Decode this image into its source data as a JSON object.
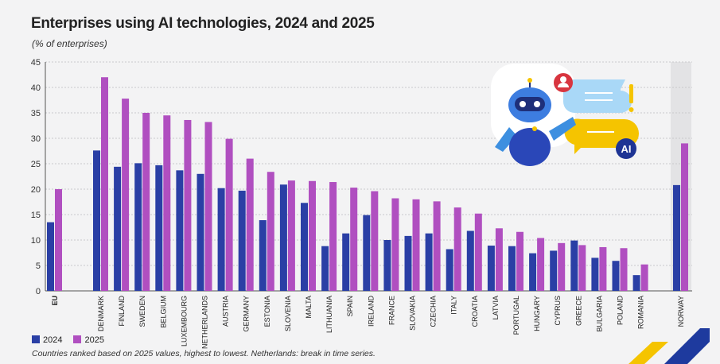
{
  "chart_data": {
    "type": "bar",
    "title": "Enterprises using AI technologies, 2024 and 2025",
    "subtitle": "(% of enterprises)",
    "ylim": [
      0,
      45
    ],
    "yticks": [
      0,
      5,
      10,
      15,
      20,
      25,
      30,
      35,
      40,
      45
    ],
    "grid": true,
    "legend_position": "bottom-left",
    "categories": [
      "EU",
      "DENMARK",
      "FINLAND",
      "SWEDEN",
      "BELGIUM",
      "LUXEMBOURG",
      "NETHERLANDS",
      "AUSTRIA",
      "GERMANY",
      "ESTONIA",
      "SLOVENIA",
      "MALTA",
      "LITHUANIA",
      "SPAIN",
      "IRELAND",
      "FRANCE",
      "SLOVAKIA",
      "CZECHIA",
      "ITALY",
      "CROATIA",
      "LATVIA",
      "PORTUGAL",
      "HUNGARY",
      "CYPRUS",
      "GREECE",
      "BULGARIA",
      "POLAND",
      "ROMANIA",
      "NORWAY"
    ],
    "series": [
      {
        "name": "2024",
        "color": "#2a3fa5",
        "values": [
          13.5,
          27.6,
          24.4,
          25.1,
          24.7,
          23.7,
          23.0,
          20.2,
          19.7,
          13.9,
          20.9,
          17.3,
          8.8,
          11.3,
          14.9,
          10.0,
          10.8,
          11.3,
          8.2,
          11.8,
          8.9,
          8.8,
          7.4,
          7.9,
          9.9,
          6.5,
          5.9,
          3.1,
          20.8
        ]
      },
      {
        "name": "2025",
        "color": "#b04fc0",
        "values": [
          20.0,
          42.0,
          37.8,
          35.0,
          34.5,
          33.6,
          33.2,
          29.9,
          26.0,
          23.4,
          21.7,
          21.6,
          21.4,
          20.3,
          19.6,
          18.2,
          18.0,
          17.6,
          16.4,
          15.2,
          12.3,
          11.6,
          10.4,
          9.4,
          9.0,
          8.6,
          8.4,
          5.2,
          29.0
        ]
      }
    ],
    "note": "Countries ranked based on 2025 values, highest to lowest. Netherlands: break in time series."
  },
  "illustration": {
    "badge": "AI"
  }
}
